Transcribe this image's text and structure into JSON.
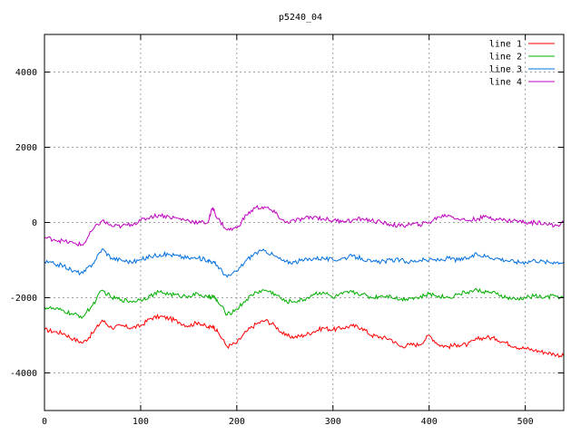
{
  "chart_data": {
    "type": "line",
    "title": "p5240_04",
    "xlabel": "",
    "ylabel": "",
    "xlim": [
      0,
      540
    ],
    "ylim": [
      -5000,
      5000
    ],
    "x_ticks": [
      0,
      100,
      200,
      300,
      400,
      500
    ],
    "y_ticks": [
      -4000,
      -2000,
      0,
      2000,
      4000
    ],
    "grid": true,
    "legend_position": "top-right",
    "x": [
      0,
      10,
      20,
      30,
      40,
      50,
      60,
      70,
      80,
      90,
      100,
      110,
      120,
      130,
      140,
      150,
      160,
      170,
      175,
      180,
      190,
      200,
      210,
      220,
      230,
      240,
      250,
      260,
      270,
      280,
      290,
      300,
      310,
      320,
      330,
      340,
      350,
      360,
      370,
      380,
      390,
      400,
      410,
      420,
      430,
      440,
      450,
      460,
      470,
      480,
      490,
      500,
      510,
      520,
      530,
      540
    ],
    "series": [
      {
        "name": "line 1",
        "color": "#ff0000",
        "values": [
          -2850,
          -2900,
          -2950,
          -3100,
          -3200,
          -2950,
          -2600,
          -2800,
          -2750,
          -2800,
          -2750,
          -2550,
          -2500,
          -2550,
          -2650,
          -2750,
          -2650,
          -2800,
          -2750,
          -2900,
          -3300,
          -3200,
          -2900,
          -2700,
          -2600,
          -2750,
          -3000,
          -3050,
          -3000,
          -2900,
          -2800,
          -2850,
          -2800,
          -2750,
          -2800,
          -3000,
          -3050,
          -3100,
          -3300,
          -3250,
          -3250,
          -3000,
          -3250,
          -3300,
          -3250,
          -3250,
          -3100,
          -3050,
          -3100,
          -3200,
          -3300,
          -3350,
          -3400,
          -3450,
          -3500,
          -3550
        ]
      },
      {
        "name": "line 2",
        "color": "#00b000",
        "values": [
          -2250,
          -2300,
          -2350,
          -2450,
          -2500,
          -2200,
          -1800,
          -2000,
          -2050,
          -2100,
          -2050,
          -1950,
          -1850,
          -1900,
          -1950,
          -1950,
          -1900,
          -2000,
          -1950,
          -2100,
          -2450,
          -2300,
          -2050,
          -1850,
          -1800,
          -1900,
          -2100,
          -2100,
          -2050,
          -1900,
          -1850,
          -2000,
          -1900,
          -1850,
          -1900,
          -2000,
          -1950,
          -1950,
          -2050,
          -2000,
          -2000,
          -1900,
          -1950,
          -2000,
          -1900,
          -1850,
          -1800,
          -1850,
          -1900,
          -2000,
          -2050,
          -2000,
          -1950,
          -2000,
          -1950,
          -2000
        ]
      },
      {
        "name": "line 3",
        "color": "#0070e0",
        "values": [
          -1050,
          -1100,
          -1150,
          -1300,
          -1350,
          -1100,
          -700,
          -950,
          -1000,
          -1050,
          -1000,
          -900,
          -850,
          -850,
          -900,
          -950,
          -950,
          -1000,
          -1050,
          -1150,
          -1450,
          -1300,
          -1000,
          -800,
          -750,
          -900,
          -1050,
          -1050,
          -1000,
          -950,
          -950,
          -1000,
          -950,
          -900,
          -950,
          -1050,
          -1050,
          -1000,
          -1000,
          -1050,
          -1000,
          -1000,
          -1000,
          -950,
          -1000,
          -950,
          -850,
          -900,
          -950,
          -1000,
          -1050,
          -1050,
          -1000,
          -1050,
          -1050,
          -1050
        ]
      },
      {
        "name": "line 4",
        "color": "#c000c0",
        "values": [
          -400,
          -450,
          -500,
          -550,
          -600,
          -200,
          50,
          -100,
          -100,
          -50,
          50,
          150,
          200,
          150,
          100,
          50,
          0,
          0,
          400,
          100,
          -200,
          -150,
          200,
          400,
          400,
          250,
          0,
          50,
          100,
          150,
          100,
          50,
          50,
          50,
          100,
          50,
          0,
          -50,
          -100,
          -50,
          -50,
          0,
          150,
          200,
          100,
          50,
          100,
          150,
          100,
          50,
          50,
          0,
          0,
          0,
          -100,
          0
        ]
      }
    ]
  }
}
